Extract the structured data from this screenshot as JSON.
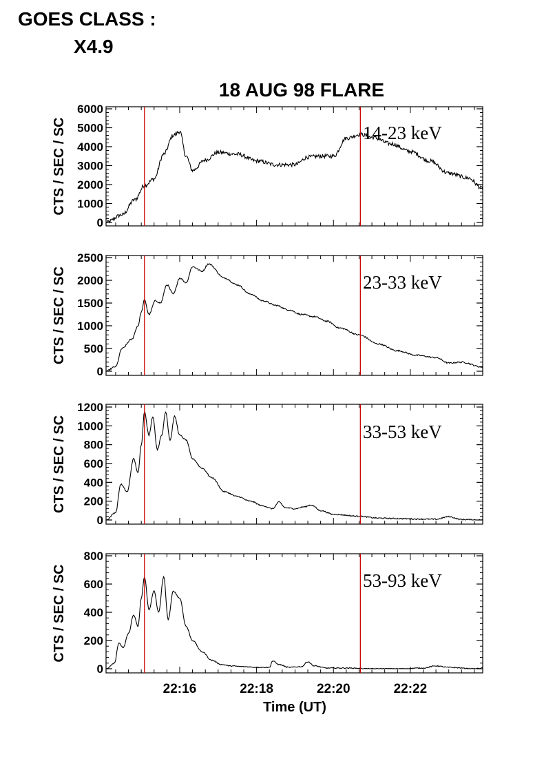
{
  "header": {
    "goes_label": "GOES CLASS :",
    "goes_class": "X4.9"
  },
  "chart_data": {
    "type": "line",
    "title": "18 AUG 98 FLARE",
    "xlabel": "Time (UT)",
    "ylabel": "CTS / SEC / SC",
    "x_range_minutes_ut": [
      "22:14:05",
      "22:23:53"
    ],
    "x_ticks": [
      "22:16",
      "22:18",
      "22:20",
      "22:22"
    ],
    "markers_ut": [
      "22:15:05",
      "22:20:42"
    ],
    "colors": {
      "trace": "#000000",
      "marker": "#cc0000",
      "axis": "#000000"
    },
    "panels": [
      {
        "band": "14-23 keV",
        "ylim": [
          0,
          6000
        ],
        "yticks": [
          "6000",
          "5000",
          "4000",
          "3000",
          "2000",
          "1000",
          "0"
        ],
        "noise": 0.035,
        "x": [
          "22:14:05",
          "22:14:30",
          "22:14:50",
          "22:15:05",
          "22:15:20",
          "22:15:35",
          "22:15:50",
          "22:16:00",
          "22:16:10",
          "22:16:20",
          "22:16:40",
          "22:17:00",
          "22:17:30",
          "22:18:00",
          "22:18:30",
          "22:19:00",
          "22:19:20",
          "22:19:40",
          "22:20:00",
          "22:20:20",
          "22:20:42",
          "22:21:00",
          "22:21:30",
          "22:22:00",
          "22:22:30",
          "22:23:00",
          "22:23:30",
          "22:23:53"
        ],
        "y": [
          0,
          400,
          1200,
          1950,
          2300,
          3600,
          4600,
          4800,
          3500,
          2750,
          3300,
          3700,
          3600,
          3250,
          3050,
          3050,
          3450,
          3500,
          3500,
          4450,
          4650,
          4500,
          4150,
          3750,
          3250,
          2600,
          2350,
          1800
        ]
      },
      {
        "band": "23-33 keV",
        "ylim": [
          0,
          2500
        ],
        "yticks": [
          "2500",
          "2000",
          "1500",
          "1000",
          "500",
          "0"
        ],
        "noise": 0.012,
        "x": [
          "22:14:05",
          "22:14:20",
          "22:14:30",
          "22:14:45",
          "22:14:55",
          "22:15:00",
          "22:15:05",
          "22:15:12",
          "22:15:22",
          "22:15:30",
          "22:15:40",
          "22:15:50",
          "22:16:00",
          "22:16:10",
          "22:16:20",
          "22:16:35",
          "22:16:45",
          "22:17:10",
          "22:17:30",
          "22:17:50",
          "22:18:10",
          "22:18:30",
          "22:18:50",
          "22:19:10",
          "22:19:30",
          "22:19:50",
          "22:20:10",
          "22:20:40",
          "22:21:10",
          "22:21:40",
          "22:22:10",
          "22:22:40",
          "22:23:00",
          "22:23:20",
          "22:23:53"
        ],
        "y": [
          0,
          100,
          500,
          700,
          1000,
          1300,
          1570,
          1250,
          1550,
          1500,
          1900,
          1700,
          2050,
          1950,
          2300,
          2200,
          2360,
          2050,
          1900,
          1700,
          1550,
          1450,
          1350,
          1250,
          1200,
          1100,
          950,
          800,
          600,
          450,
          350,
          300,
          180,
          200,
          90
        ]
      },
      {
        "band": "33-53 keV",
        "ylim": [
          0,
          1200
        ],
        "yticks": [
          "1200",
          "1000",
          "800",
          "600",
          "400",
          "200",
          "0"
        ],
        "noise": 0.01,
        "x": [
          "22:14:05",
          "22:14:20",
          "22:14:28",
          "22:14:38",
          "22:14:48",
          "22:14:55",
          "22:15:00",
          "22:15:05",
          "22:15:12",
          "22:15:18",
          "22:15:25",
          "22:15:32",
          "22:15:38",
          "22:15:45",
          "22:15:52",
          "22:16:00",
          "22:16:10",
          "22:16:20",
          "22:16:35",
          "22:16:50",
          "22:17:10",
          "22:17:30",
          "22:17:50",
          "22:18:10",
          "22:18:25",
          "22:18:35",
          "22:18:45",
          "22:19:00",
          "22:19:15",
          "22:19:25",
          "22:19:40",
          "22:20:00",
          "22:20:40",
          "22:21:10",
          "22:21:40",
          "22:22:10",
          "22:22:40",
          "22:23:00",
          "22:23:20",
          "22:23:53"
        ],
        "y": [
          0,
          80,
          380,
          300,
          650,
          500,
          800,
          1150,
          900,
          1100,
          750,
          900,
          1150,
          850,
          1100,
          900,
          850,
          650,
          550,
          450,
          300,
          250,
          200,
          150,
          120,
          190,
          130,
          120,
          140,
          160,
          100,
          60,
          40,
          20,
          15,
          10,
          8,
          35,
          5,
          0
        ]
      },
      {
        "band": "53-93 keV",
        "ylim": [
          0,
          800
        ],
        "yticks": [
          "800",
          "600",
          "400",
          "200",
          "0"
        ],
        "noise": 0.008,
        "x": [
          "22:14:05",
          "22:14:18",
          "22:14:25",
          "22:14:32",
          "22:14:40",
          "22:14:48",
          "22:14:55",
          "22:15:00",
          "22:15:05",
          "22:15:12",
          "22:15:20",
          "22:15:27",
          "22:15:35",
          "22:15:42",
          "22:15:50",
          "22:16:00",
          "22:16:10",
          "22:16:20",
          "22:16:35",
          "22:16:50",
          "22:17:05",
          "22:17:20",
          "22:17:40",
          "22:18:00",
          "22:18:20",
          "22:18:25",
          "22:18:35",
          "22:18:50",
          "22:19:10",
          "22:19:20",
          "22:19:30",
          "22:19:50",
          "22:20:20",
          "22:21:00",
          "22:21:40",
          "22:22:20",
          "22:22:40",
          "22:23:00",
          "22:23:40",
          "22:23:53"
        ],
        "y": [
          0,
          40,
          180,
          150,
          250,
          380,
          300,
          500,
          650,
          420,
          550,
          400,
          650,
          350,
          550,
          500,
          300,
          200,
          120,
          60,
          30,
          20,
          15,
          10,
          10,
          55,
          30,
          10,
          15,
          50,
          20,
          5,
          5,
          0,
          0,
          5,
          20,
          10,
          0,
          5
        ]
      }
    ]
  }
}
